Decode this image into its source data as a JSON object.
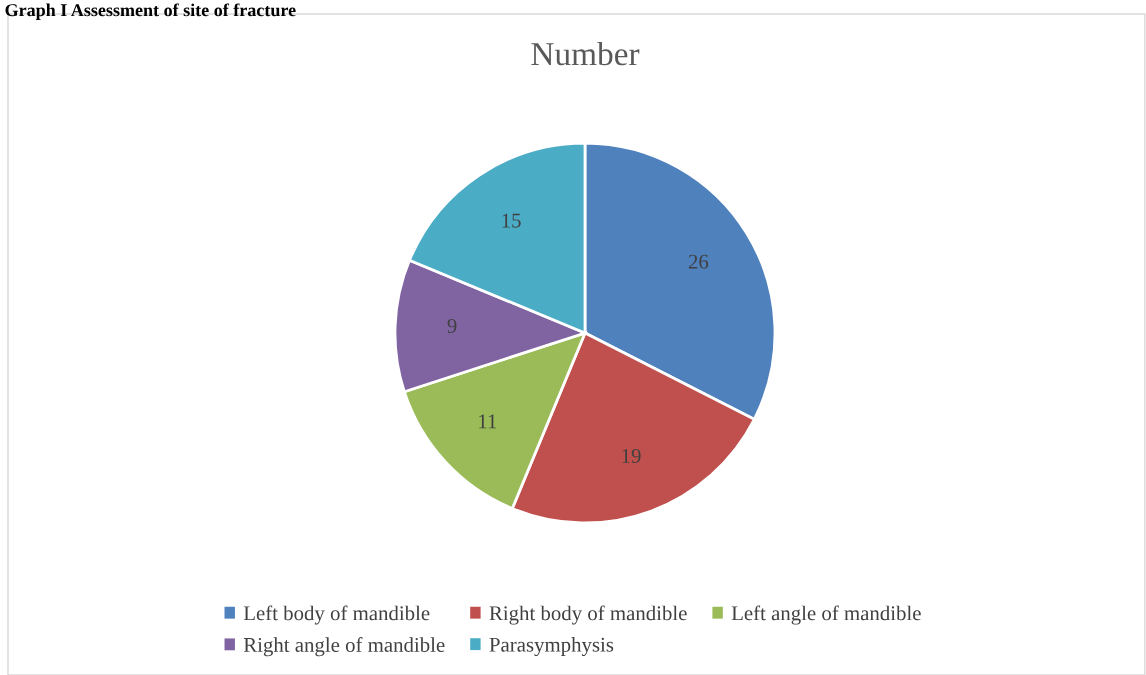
{
  "chart_data": {
    "type": "pie",
    "title": "Number",
    "annotations": [
      "Graph I Assessment of site of fracture"
    ],
    "categories": [
      "Left body of mandible",
      "Right body of mandible",
      "Left angle of mandible",
      "Right angle of mandible",
      "Parasymphysis"
    ],
    "values": [
      26,
      19,
      11,
      9,
      15
    ],
    "colors": [
      "#4f81bd",
      "#c0504d",
      "#9bbb59",
      "#8064a2",
      "#4bacc6"
    ],
    "data_labels": true,
    "legend": "bottom"
  }
}
